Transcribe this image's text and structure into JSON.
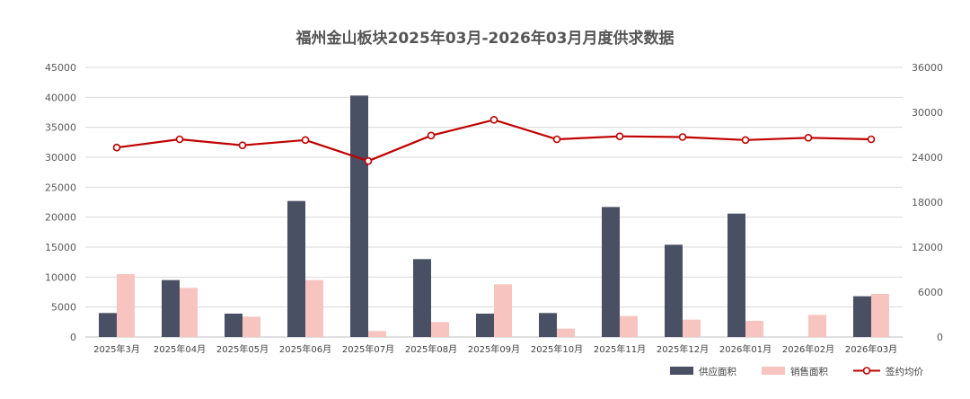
{
  "chart_data": {
    "type": "bar",
    "title": "福州金山板块2025年03月-2026年03月月度供求数据",
    "categories": [
      "2025年3月",
      "2025年04月",
      "2025年05月",
      "2025年06月",
      "2025年07月",
      "2025年08月",
      "2025年09月",
      "2025年10月",
      "2025年11月",
      "2025年12月",
      "2026年01月",
      "2026年02月",
      "2026年03月"
    ],
    "series": [
      {
        "name": "供应面积",
        "type": "bar",
        "axis": "left",
        "color": "#4a5063",
        "values": [
          4000,
          9500,
          3900,
          22700,
          40300,
          13000,
          3900,
          4000,
          21700,
          15400,
          20600,
          0,
          6800
        ]
      },
      {
        "name": "销售面积",
        "type": "bar",
        "axis": "left",
        "color": "#f7c4c0",
        "values": [
          10500,
          8200,
          3400,
          9500,
          1000,
          2500,
          8800,
          1400,
          3500,
          2900,
          2700,
          3700,
          7200
        ]
      },
      {
        "name": "签约均价",
        "type": "line",
        "axis": "right",
        "color": "#c00000",
        "values": [
          25300,
          26400,
          25600,
          26300,
          23500,
          26900,
          29000,
          26400,
          26800,
          26700,
          26300,
          26600,
          26400
        ]
      }
    ],
    "y_left": {
      "min": 0,
      "max": 45000,
      "ticks": [
        "0",
        "5000",
        "10000",
        "15000",
        "20000",
        "25000",
        "30000",
        "35000",
        "40000",
        "45000"
      ]
    },
    "y_right": {
      "min": 0,
      "max": 36000,
      "ticks": [
        "0",
        "6000",
        "12000",
        "18000",
        "24000",
        "30000",
        "36000"
      ]
    },
    "grid": true,
    "legend_position": "bottom-right"
  }
}
